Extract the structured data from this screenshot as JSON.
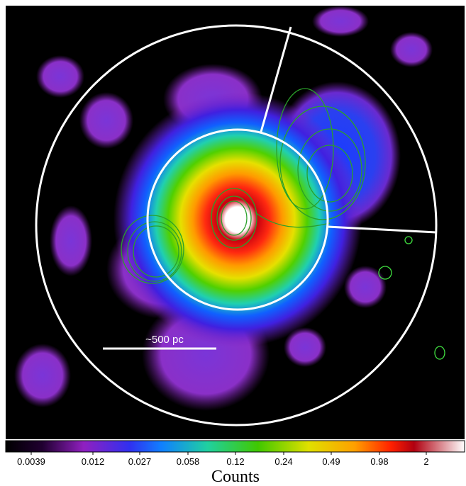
{
  "image": {
    "scale_bar_label": "~500 pc"
  },
  "colorbar": {
    "ticks": [
      0.0039,
      0.012,
      0.027,
      0.058,
      0.12,
      0.24,
      0.49,
      0.98,
      2
    ],
    "label": "Counts"
  }
}
